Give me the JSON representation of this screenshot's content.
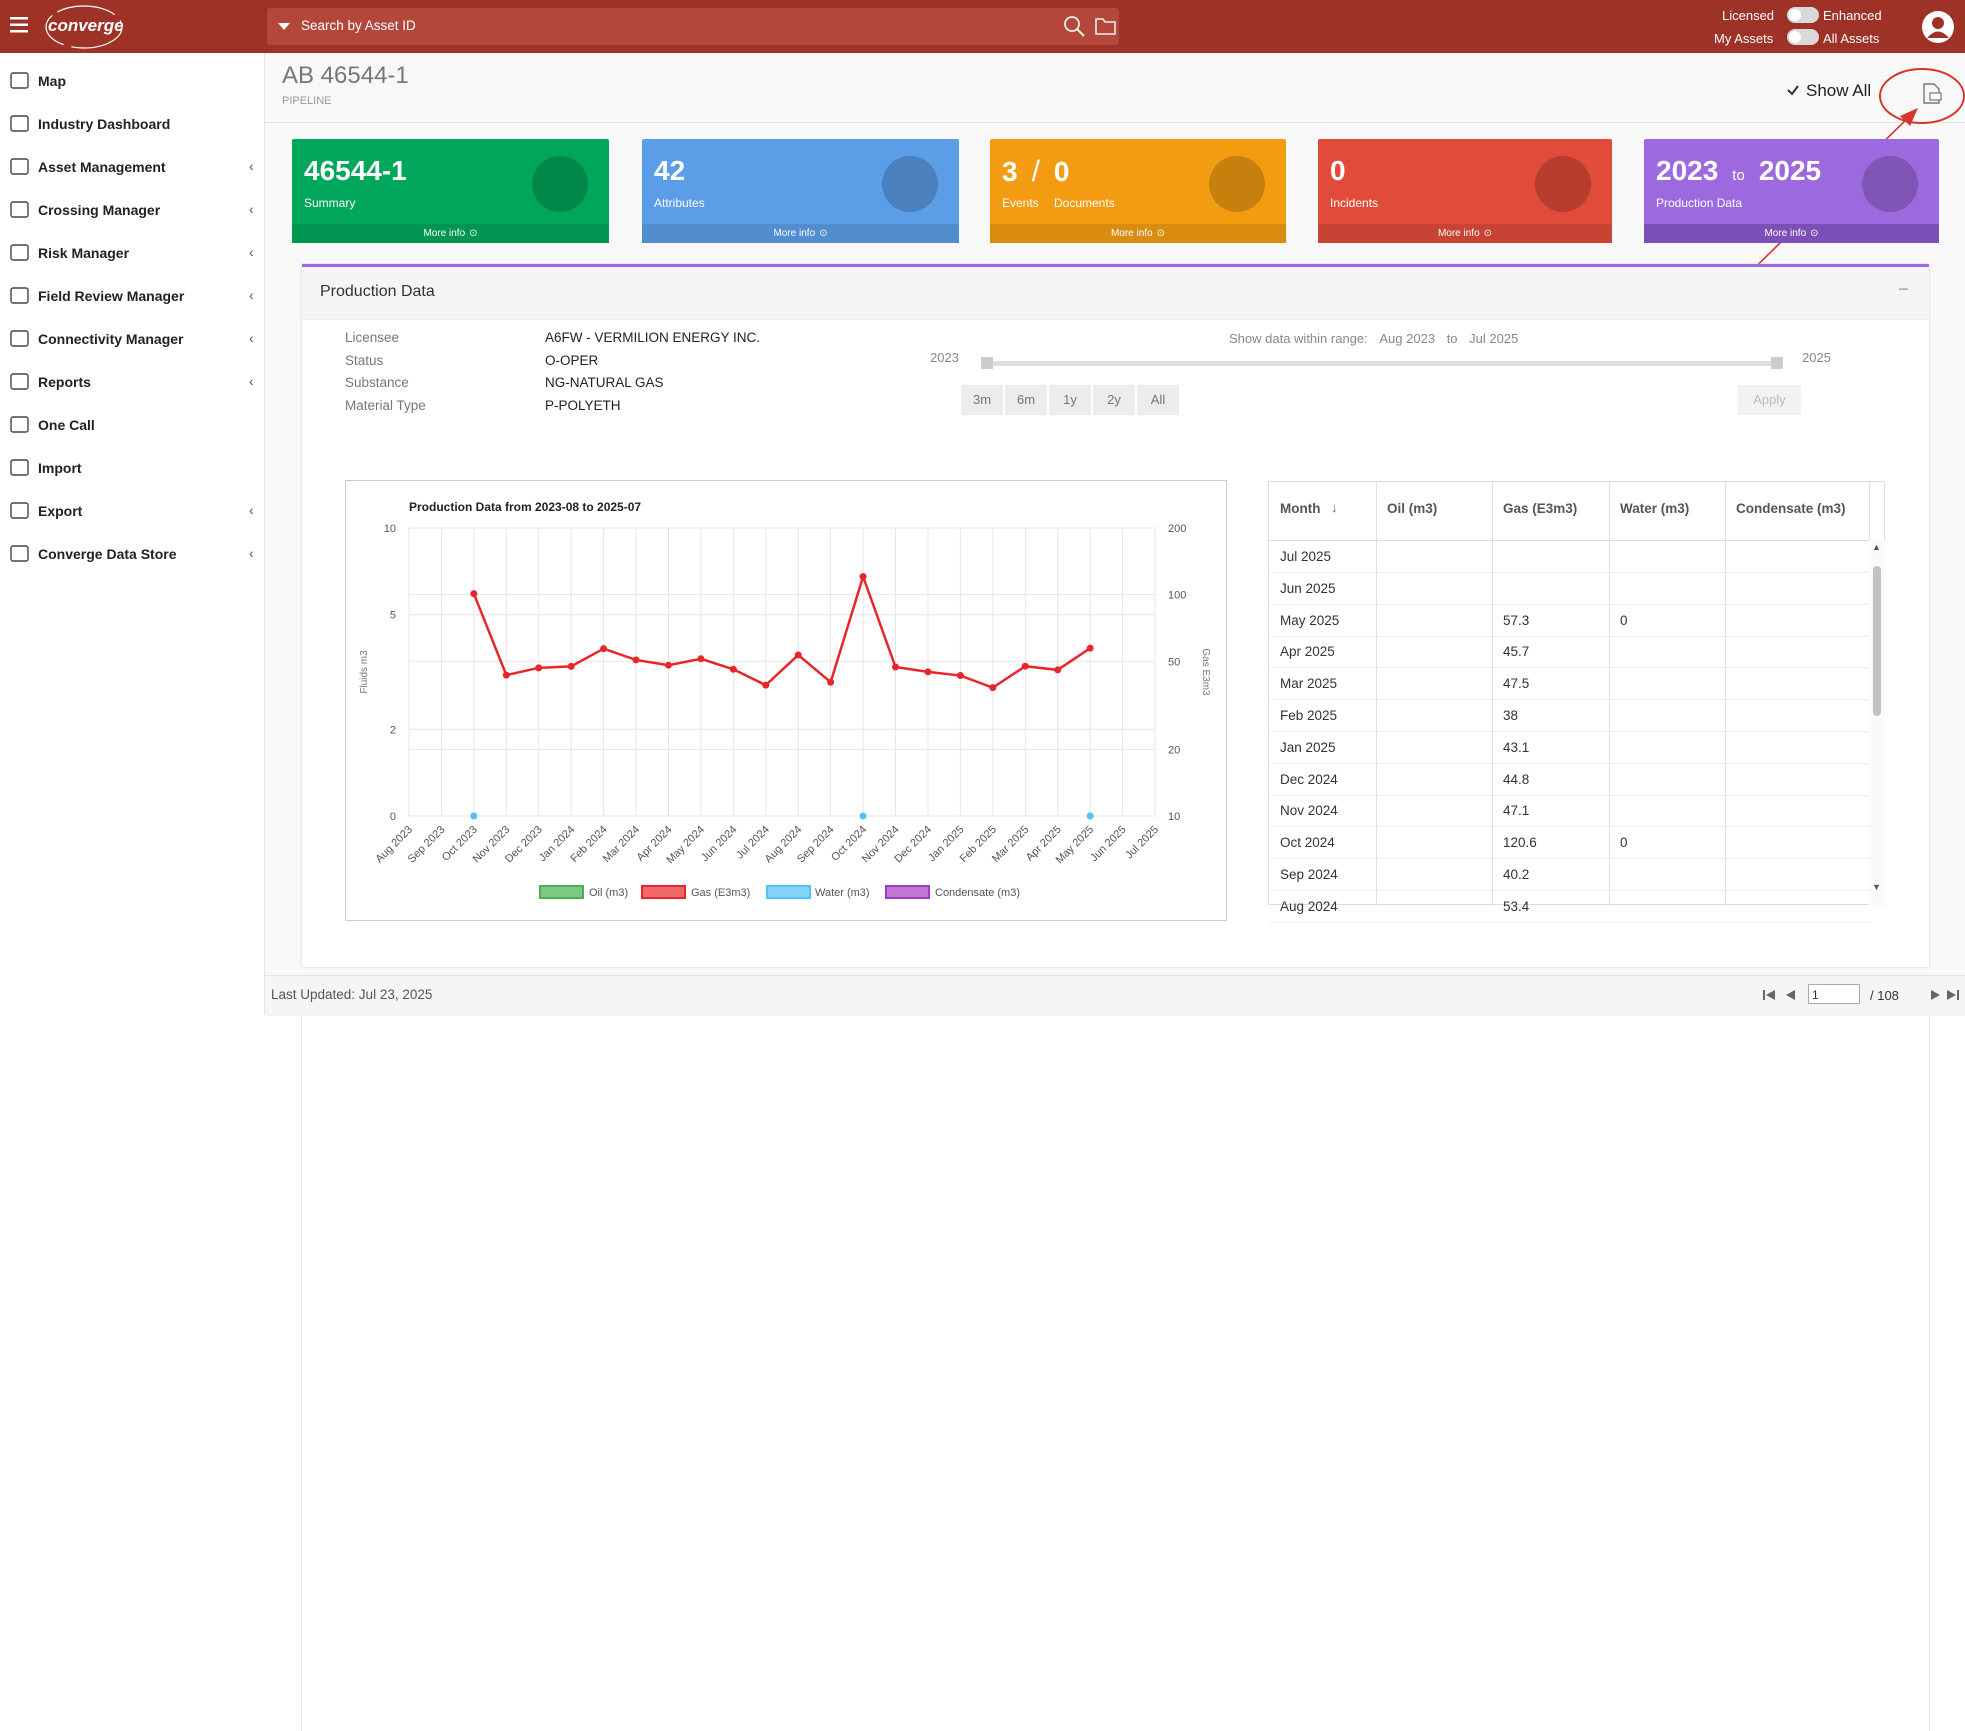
{
  "top_bar": {
    "logo": "converge",
    "search_placeholder": "Search by Asset ID",
    "licensed": "Licensed",
    "enhanced": "Enhanced",
    "my_assets": "My Assets",
    "all_assets": "All Assets"
  },
  "sidebar": {
    "items": [
      {
        "label": "Map",
        "submenu": false
      },
      {
        "label": "Industry Dashboard",
        "submenu": false
      },
      {
        "label": "Asset Management",
        "submenu": true
      },
      {
        "label": "Crossing Manager",
        "submenu": true
      },
      {
        "label": "Risk Manager",
        "submenu": true
      },
      {
        "label": "Field Review Manager",
        "submenu": true
      },
      {
        "label": "Connectivity Manager",
        "submenu": true
      },
      {
        "label": "Reports",
        "submenu": true
      },
      {
        "label": "One Call",
        "submenu": false
      },
      {
        "label": "Import",
        "submenu": false
      },
      {
        "label": "Export",
        "submenu": true
      },
      {
        "label": "Converge Data Store",
        "submenu": true
      }
    ]
  },
  "header": {
    "title": "AB 46544-1",
    "subtitle": "PIPELINE",
    "show_all": "Show All",
    "show_all_checked": true
  },
  "tiles": [
    {
      "values": [
        "46544-1"
      ],
      "labels": [
        "Summary"
      ],
      "more": "More info",
      "color": "#00a65a",
      "footer_color": "#009551"
    },
    {
      "values": [
        "42"
      ],
      "labels": [
        "Attributes"
      ],
      "more": "More info",
      "color": "#5c9de8",
      "footer_color": "#528dd0"
    },
    {
      "values": [
        "3",
        "0"
      ],
      "separator": "/",
      "labels": [
        "Events",
        "Documents"
      ],
      "more": "More info",
      "color": "#f39c12",
      "footer_color": "#da8c10"
    },
    {
      "values": [
        "0"
      ],
      "labels": [
        "Incidents"
      ],
      "more": "More info",
      "color": "#e04b3a",
      "footer_color": "#c94334"
    },
    {
      "values": [
        "2023",
        "2025"
      ],
      "separator": "to",
      "labels": [
        "Production Data"
      ],
      "more": "More info",
      "color": "#9c6ade",
      "footer_color": "#7c4fb8"
    }
  ],
  "panel": {
    "title": "Production Data",
    "fields": [
      {
        "label": "Licensee",
        "value": "A6FW - VERMILION ENERGY INC."
      },
      {
        "label": "Status",
        "value": "O-OPER"
      },
      {
        "label": "Substance",
        "value": "NG-NATURAL GAS"
      },
      {
        "label": "Material Type",
        "value": "P-POLYETH"
      }
    ],
    "range_label": "Show data within range:",
    "range_from": "Aug 2023",
    "range_to_word": "to",
    "range_to": "Jul 2025",
    "slider_min": "2023",
    "slider_max": "2025",
    "buttons": [
      "3m",
      "6m",
      "1y",
      "2y",
      "All"
    ],
    "apply": "Apply"
  },
  "chart_data": {
    "type": "line",
    "title": "Production Data from 2023-08 to 2025-07",
    "y_label": "Fluids m3",
    "y2_label": "Gas E3m3",
    "categories": [
      "Aug 2023",
      "Sep 2023",
      "Oct 2023",
      "Nov 2023",
      "Dec 2023",
      "Jan 2024",
      "Feb 2024",
      "Mar 2024",
      "Apr 2024",
      "May 2024",
      "Jun 2024",
      "Jul 2024",
      "Aug 2024",
      "Sep 2024",
      "Oct 2024",
      "Nov 2024",
      "Dec 2024",
      "Jan 2025",
      "Feb 2025",
      "Mar 2025",
      "Apr 2025",
      "May 2025",
      "Jun 2025",
      "Jul 2025"
    ],
    "ylim": [
      0,
      10
    ],
    "yticks": [
      0,
      2,
      5,
      10
    ],
    "y_log": true,
    "y2lim": [
      10,
      200
    ],
    "y2ticks": [
      10,
      20,
      50,
      100,
      200
    ],
    "y2_log": true,
    "grid": true,
    "legend": "bottom",
    "series": [
      {
        "name": "Oil (m3)",
        "color": "#4caf50",
        "axis": "y",
        "values": [
          null,
          null,
          null,
          null,
          null,
          null,
          null,
          null,
          null,
          null,
          null,
          null,
          null,
          null,
          null,
          null,
          null,
          null,
          null,
          null,
          null,
          null,
          null,
          null
        ]
      },
      {
        "name": "Gas (E3m3)",
        "color": "#e8262a",
        "axis": "y2",
        "values": [
          null,
          null,
          101,
          43.3,
          46.7,
          47.4,
          57,
          50.7,
          48,
          51.3,
          46,
          39,
          53.4,
          40.2,
          120.6,
          47.1,
          44.8,
          43.1,
          38,
          47.5,
          45.7,
          57.3,
          null,
          null
        ]
      },
      {
        "name": "Water (m3)",
        "color": "#4fc3f7",
        "axis": "y",
        "values": [
          null,
          null,
          0,
          null,
          null,
          null,
          null,
          null,
          null,
          null,
          null,
          null,
          null,
          null,
          0,
          null,
          null,
          null,
          null,
          null,
          null,
          0,
          null,
          null
        ]
      },
      {
        "name": "Condensate (m3)",
        "color": "#a23dc4",
        "axis": "y",
        "values": [
          null,
          null,
          null,
          null,
          null,
          null,
          null,
          null,
          null,
          null,
          null,
          null,
          null,
          null,
          null,
          null,
          null,
          null,
          null,
          null,
          null,
          null,
          null,
          null
        ]
      }
    ]
  },
  "table": {
    "columns": [
      "Month",
      "Oil (m3)",
      "Gas (E3m3)",
      "Water (m3)",
      "Condensate (m3)"
    ],
    "rows": [
      [
        "Jul 2025",
        null,
        null,
        null,
        null
      ],
      [
        "Jun 2025",
        null,
        null,
        null,
        null
      ],
      [
        "May 2025",
        null,
        "57.3",
        "0",
        null
      ],
      [
        "Apr 2025",
        null,
        "45.7",
        null,
        null
      ],
      [
        "Mar 2025",
        null,
        "47.5",
        null,
        null
      ],
      [
        "Feb 2025",
        null,
        "38",
        null,
        null
      ],
      [
        "Jan 2025",
        null,
        "43.1",
        null,
        null
      ],
      [
        "Dec 2024",
        null,
        "44.8",
        null,
        null
      ],
      [
        "Nov 2024",
        null,
        "47.1",
        null,
        null
      ],
      [
        "Oct 2024",
        null,
        "120.6",
        "0",
        null
      ],
      [
        "Sep 2024",
        null,
        "40.2",
        null,
        null
      ],
      [
        "Aug 2024",
        null,
        "53.4",
        null,
        null
      ]
    ]
  },
  "footer": {
    "last_updated": "Last Updated: Jul 23, 2025",
    "page": "1",
    "pages": "/ 108"
  }
}
